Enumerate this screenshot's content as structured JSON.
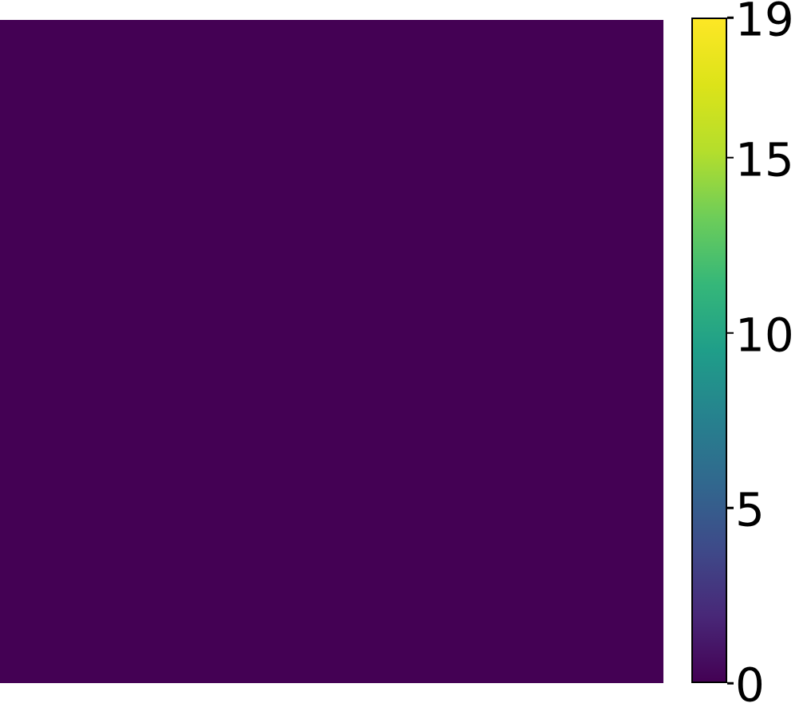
{
  "chart_data": {
    "type": "heatmap",
    "title": "",
    "xlabel": "",
    "ylabel": "",
    "uniform_value": 0,
    "heatmap_fill_color": "#440154",
    "colormap": "viridis",
    "colormap_stops": [
      "#440154",
      "#482878",
      "#3e4a89",
      "#31688e",
      "#26828e",
      "#1f9e89",
      "#35b779",
      "#6dcd59",
      "#b4de2c",
      "#dce319",
      "#fde725"
    ],
    "axes_visible": false,
    "grid": false,
    "colorbar": {
      "position": "right",
      "min": 0,
      "max": 19,
      "outline_color": "#000000",
      "tick_color": "#000000",
      "label_color": "#000000",
      "ticks": [
        {
          "value": 0,
          "label": "0"
        },
        {
          "value": 5,
          "label": "5"
        },
        {
          "value": 10,
          "label": "10"
        },
        {
          "value": 15,
          "label": "15"
        },
        {
          "value": 19,
          "label": "19"
        }
      ]
    }
  }
}
